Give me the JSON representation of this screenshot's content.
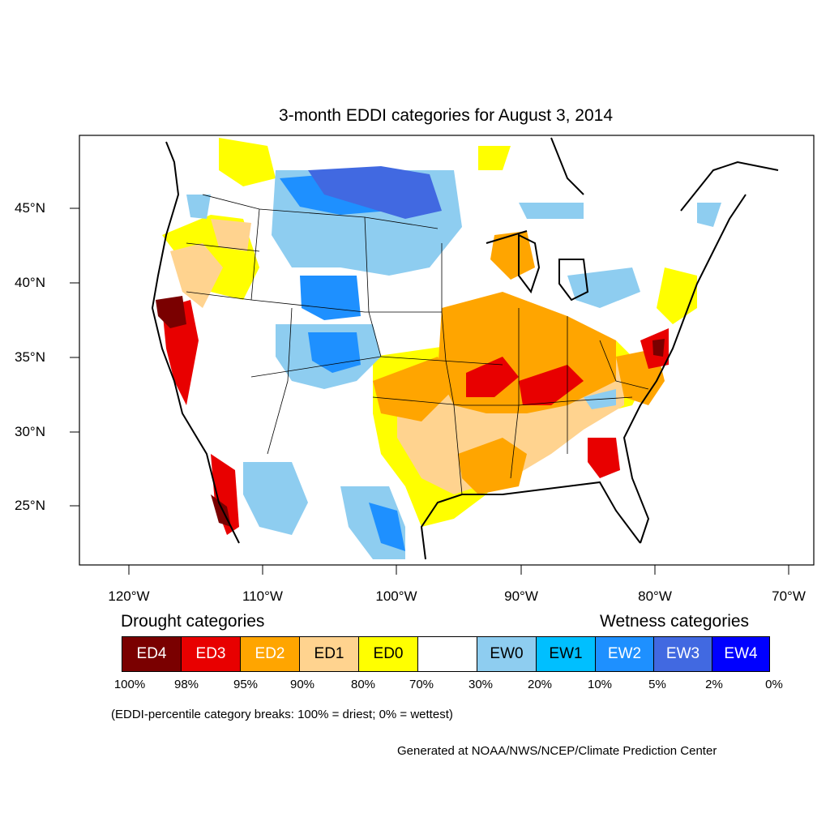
{
  "title": "3-month EDDI categories for August 3, 2014",
  "lat_labels": [
    "45°N",
    "40°N",
    "35°N",
    "30°N",
    "25°N"
  ],
  "lon_labels": [
    "120°W",
    "110°W",
    "100°W",
    "90°W",
    "80°W",
    "70°W"
  ],
  "legend": {
    "drought_heading": "Drought categories",
    "wetness_heading": "Wetness categories",
    "categories": [
      {
        "label": "ED4",
        "color": "#7a0000",
        "text_color": "#ffffff"
      },
      {
        "label": "ED3",
        "color": "#e80000",
        "text_color": "#ffffff"
      },
      {
        "label": "ED2",
        "color": "#ffa500",
        "text_color": "#ffffff"
      },
      {
        "label": "ED1",
        "color": "#ffd38f",
        "text_color": "#000000"
      },
      {
        "label": "ED0",
        "color": "#ffff00",
        "text_color": "#000000"
      },
      {
        "label": "",
        "color": "#ffffff",
        "text_color": "#000000"
      },
      {
        "label": "EW0",
        "color": "#8ecdf0",
        "text_color": "#000000"
      },
      {
        "label": "EW1",
        "color": "#00bfff",
        "text_color": "#000000"
      },
      {
        "label": "EW2",
        "color": "#1e90ff",
        "text_color": "#ffffff"
      },
      {
        "label": "EW3",
        "color": "#4169e1",
        "text_color": "#ffffff"
      },
      {
        "label": "EW4",
        "color": "#0000ff",
        "text_color": "#ffffff"
      }
    ],
    "breaks": [
      "100%",
      "98%",
      "95%",
      "90%",
      "80%",
      "70%",
      "30%",
      "20%",
      "10%",
      "5%",
      "2%",
      "0%"
    ]
  },
  "note": "(EDDI-percentile category breaks: 100% = driest; 0% = wettest)",
  "credit": "Generated at NOAA/NWS/NCEP/Climate Prediction Center"
}
